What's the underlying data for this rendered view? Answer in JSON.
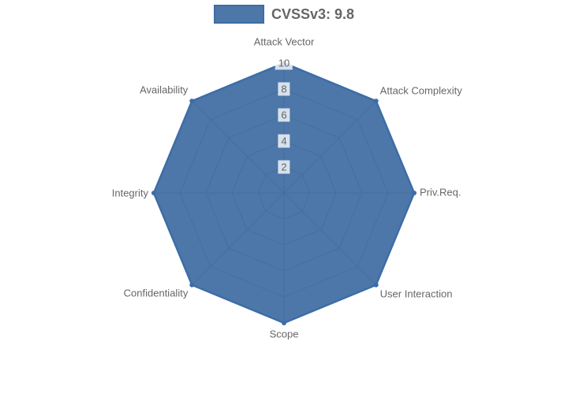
{
  "legend": {
    "label": "CVSSv3: 9.8"
  },
  "chart_data": {
    "type": "radar",
    "title": "",
    "categories": [
      "Attack Vector",
      "Attack Complexity",
      "Priv.Req.",
      "User Interaction",
      "Scope",
      "Confidentiality",
      "Integrity",
      "Availability"
    ],
    "series": [
      {
        "name": "CVSSv3: 9.8",
        "values": [
          10,
          10,
          10,
          10,
          10,
          10,
          10,
          10
        ]
      }
    ],
    "ticks": [
      "2",
      "4",
      "6",
      "8",
      "10"
    ],
    "rmin": 0,
    "rmax": 10,
    "grid": true,
    "legend_position": "top",
    "colors": {
      "series_fill": "rgba(58,104,158,0.9)",
      "series_border": "#3d6da6",
      "grid_line": "#9aa5b1",
      "tick_text": "#666666",
      "tick_backdrop": "rgba(255,255,255,0.78)",
      "axis_label": "#666666",
      "legend_text": "#666666"
    }
  }
}
